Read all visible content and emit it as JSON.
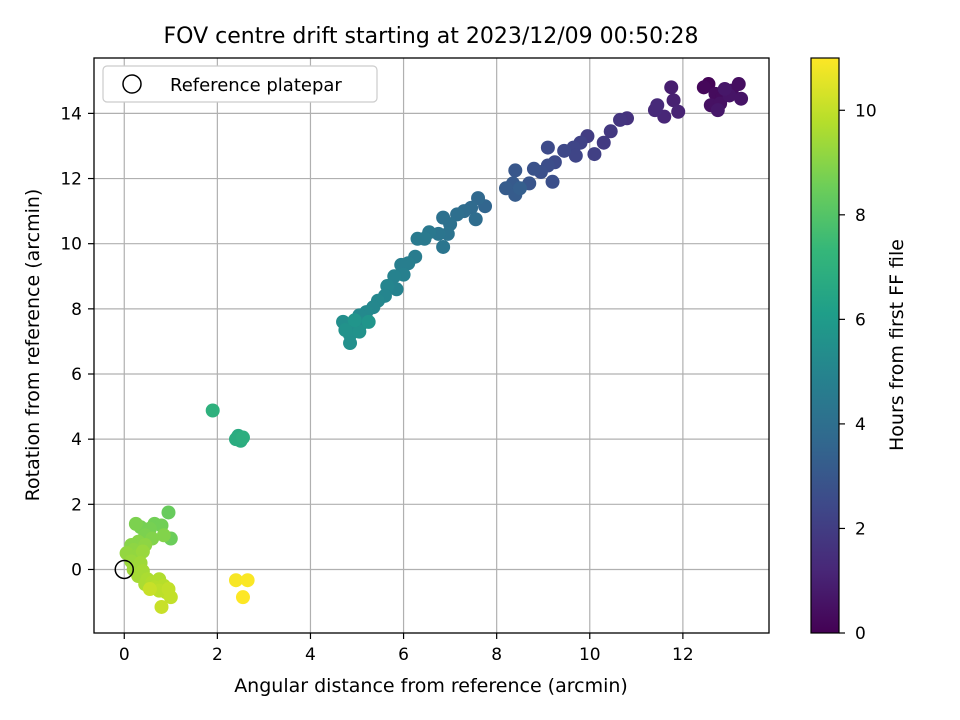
{
  "chart_data": {
    "type": "scatter",
    "title": "FOV centre drift starting at 2023/12/09 00:50:28",
    "xlabel": "Angular distance from reference (arcmin)",
    "ylabel": "Rotation from reference (arcmin)",
    "xlim": [
      -0.65,
      13.85
    ],
    "ylim": [
      -1.95,
      15.7
    ],
    "xticks": [
      0,
      2,
      4,
      6,
      8,
      10,
      12
    ],
    "yticks": [
      0,
      2,
      4,
      6,
      8,
      10,
      12,
      14
    ],
    "grid": true,
    "legend": {
      "position": "top-left",
      "entries": [
        "Reference platepar"
      ]
    },
    "colorbar": {
      "label": "Hours from first FF file",
      "range": [
        0,
        11
      ],
      "ticks": [
        0,
        2,
        4,
        6,
        8,
        10
      ],
      "colormap": "viridis",
      "colors": [
        "#440154",
        "#482878",
        "#3e4989",
        "#31688e",
        "#26828e",
        "#1f9e89",
        "#35b779",
        "#6ece58",
        "#b5de2b",
        "#fde725"
      ]
    },
    "reference_point": {
      "x": 0,
      "y": 0
    },
    "series": [
      {
        "values": [
          {
            "x": 12.55,
            "y": 14.9,
            "h": 0.1
          },
          {
            "x": 12.45,
            "y": 14.8,
            "h": 0.2
          },
          {
            "x": 12.7,
            "y": 14.6,
            "h": 0.3
          },
          {
            "x": 12.85,
            "y": 14.5,
            "h": 0.3
          },
          {
            "x": 13.05,
            "y": 14.7,
            "h": 0.4
          },
          {
            "x": 13.2,
            "y": 14.9,
            "h": 0.4
          },
          {
            "x": 12.6,
            "y": 14.25,
            "h": 0.5
          },
          {
            "x": 12.8,
            "y": 14.3,
            "h": 0.5
          },
          {
            "x": 13.0,
            "y": 14.55,
            "h": 0.6
          },
          {
            "x": 13.25,
            "y": 14.45,
            "h": 0.6
          },
          {
            "x": 12.75,
            "y": 14.1,
            "h": 0.7
          },
          {
            "x": 12.9,
            "y": 14.75,
            "h": 0.7
          },
          {
            "x": 11.75,
            "y": 14.8,
            "h": 0.9
          },
          {
            "x": 11.8,
            "y": 14.4,
            "h": 1.0
          },
          {
            "x": 11.9,
            "y": 14.05,
            "h": 1.1
          },
          {
            "x": 11.6,
            "y": 13.9,
            "h": 1.2
          },
          {
            "x": 11.4,
            "y": 14.1,
            "h": 1.3
          },
          {
            "x": 11.45,
            "y": 14.25,
            "h": 1.3
          },
          {
            "x": 10.8,
            "y": 13.85,
            "h": 1.6
          },
          {
            "x": 10.65,
            "y": 13.8,
            "h": 1.7
          },
          {
            "x": 10.45,
            "y": 13.45,
            "h": 1.8
          },
          {
            "x": 10.3,
            "y": 13.1,
            "h": 1.9
          },
          {
            "x": 9.95,
            "y": 13.3,
            "h": 2.0
          },
          {
            "x": 10.1,
            "y": 12.75,
            "h": 2.1
          },
          {
            "x": 9.8,
            "y": 13.1,
            "h": 2.2
          },
          {
            "x": 9.65,
            "y": 12.95,
            "h": 2.3
          },
          {
            "x": 9.7,
            "y": 12.7,
            "h": 2.3
          },
          {
            "x": 9.45,
            "y": 12.85,
            "h": 2.4
          },
          {
            "x": 9.25,
            "y": 12.5,
            "h": 2.5
          },
          {
            "x": 9.1,
            "y": 12.95,
            "h": 2.5
          },
          {
            "x": 9.1,
            "y": 12.4,
            "h": 2.6
          },
          {
            "x": 8.95,
            "y": 12.2,
            "h": 2.7
          },
          {
            "x": 9.2,
            "y": 11.9,
            "h": 2.7
          },
          {
            "x": 8.8,
            "y": 12.3,
            "h": 2.8
          },
          {
            "x": 8.7,
            "y": 11.85,
            "h": 2.9
          },
          {
            "x": 8.4,
            "y": 12.25,
            "h": 3.0
          },
          {
            "x": 8.35,
            "y": 11.85,
            "h": 3.1
          },
          {
            "x": 8.2,
            "y": 11.7,
            "h": 3.2
          },
          {
            "x": 8.4,
            "y": 11.5,
            "h": 3.2
          },
          {
            "x": 8.5,
            "y": 11.7,
            "h": 3.3
          },
          {
            "x": 7.75,
            "y": 11.15,
            "h": 3.6
          },
          {
            "x": 7.6,
            "y": 11.4,
            "h": 3.7
          },
          {
            "x": 7.45,
            "y": 11.1,
            "h": 3.8
          },
          {
            "x": 7.3,
            "y": 11.0,
            "h": 3.9
          },
          {
            "x": 7.55,
            "y": 10.75,
            "h": 3.9
          },
          {
            "x": 7.15,
            "y": 10.9,
            "h": 4.0
          },
          {
            "x": 7.0,
            "y": 10.6,
            "h": 4.1
          },
          {
            "x": 6.85,
            "y": 10.8,
            "h": 4.1
          },
          {
            "x": 6.95,
            "y": 10.3,
            "h": 4.2
          },
          {
            "x": 6.75,
            "y": 10.3,
            "h": 4.3
          },
          {
            "x": 6.85,
            "y": 9.9,
            "h": 4.3
          },
          {
            "x": 6.55,
            "y": 10.35,
            "h": 4.4
          },
          {
            "x": 6.45,
            "y": 10.15,
            "h": 4.5
          },
          {
            "x": 6.3,
            "y": 10.15,
            "h": 4.5
          },
          {
            "x": 6.25,
            "y": 9.6,
            "h": 4.6
          },
          {
            "x": 6.1,
            "y": 9.4,
            "h": 4.7
          },
          {
            "x": 5.95,
            "y": 9.35,
            "h": 4.7
          },
          {
            "x": 6.0,
            "y": 9.05,
            "h": 4.8
          },
          {
            "x": 5.8,
            "y": 9.0,
            "h": 4.9
          },
          {
            "x": 5.85,
            "y": 8.6,
            "h": 4.9
          },
          {
            "x": 5.65,
            "y": 8.7,
            "h": 5.0
          },
          {
            "x": 5.6,
            "y": 8.4,
            "h": 5.0
          },
          {
            "x": 5.45,
            "y": 8.25,
            "h": 5.1
          },
          {
            "x": 5.35,
            "y": 8.05,
            "h": 5.1
          },
          {
            "x": 5.2,
            "y": 7.9,
            "h": 5.2
          },
          {
            "x": 5.05,
            "y": 7.8,
            "h": 5.2
          },
          {
            "x": 5.1,
            "y": 7.55,
            "h": 5.3
          },
          {
            "x": 4.95,
            "y": 7.4,
            "h": 5.3
          },
          {
            "x": 4.8,
            "y": 7.5,
            "h": 5.4
          },
          {
            "x": 4.7,
            "y": 7.6,
            "h": 5.4
          },
          {
            "x": 4.85,
            "y": 7.2,
            "h": 5.5
          },
          {
            "x": 4.85,
            "y": 6.95,
            "h": 5.5
          },
          {
            "x": 5.05,
            "y": 7.3,
            "h": 5.6
          },
          {
            "x": 4.75,
            "y": 7.35,
            "h": 5.6
          },
          {
            "x": 4.95,
            "y": 7.65,
            "h": 5.7
          },
          {
            "x": 5.25,
            "y": 7.6,
            "h": 5.7
          },
          {
            "x": 2.45,
            "y": 4.1,
            "h": 6.7
          },
          {
            "x": 2.5,
            "y": 3.95,
            "h": 6.8
          },
          {
            "x": 2.4,
            "y": 4.0,
            "h": 6.8
          },
          {
            "x": 2.55,
            "y": 4.05,
            "h": 6.9
          },
          {
            "x": 1.9,
            "y": 4.88,
            "h": 7.0
          },
          {
            "x": 0.95,
            "y": 1.75,
            "h": 8.4
          },
          {
            "x": 1.0,
            "y": 0.95,
            "h": 8.5
          },
          {
            "x": 0.65,
            "y": 1.4,
            "h": 8.6
          },
          {
            "x": 0.8,
            "y": 1.35,
            "h": 8.6
          },
          {
            "x": 0.55,
            "y": 1.25,
            "h": 8.7
          },
          {
            "x": 0.35,
            "y": 1.3,
            "h": 8.7
          },
          {
            "x": 0.25,
            "y": 1.4,
            "h": 8.8
          },
          {
            "x": 0.45,
            "y": 1.05,
            "h": 8.8
          },
          {
            "x": 0.6,
            "y": 0.95,
            "h": 8.9
          },
          {
            "x": 0.85,
            "y": 1.05,
            "h": 8.9
          },
          {
            "x": 0.3,
            "y": 0.85,
            "h": 9.0
          },
          {
            "x": 0.15,
            "y": 0.75,
            "h": 9.0
          },
          {
            "x": 0.2,
            "y": 0.6,
            "h": 9.1
          },
          {
            "x": 0.45,
            "y": 0.75,
            "h": 9.1
          },
          {
            "x": 0.05,
            "y": 0.5,
            "h": 9.2
          },
          {
            "x": 0.25,
            "y": 0.4,
            "h": 9.2
          },
          {
            "x": 0.4,
            "y": 0.55,
            "h": 9.3
          },
          {
            "x": 0.15,
            "y": 0.25,
            "h": 9.3
          },
          {
            "x": 0.35,
            "y": 0.2,
            "h": 9.4
          },
          {
            "x": 0.2,
            "y": 0.0,
            "h": 9.4
          },
          {
            "x": 0.4,
            "y": -0.05,
            "h": 9.5
          },
          {
            "x": 0.3,
            "y": -0.2,
            "h": 9.5
          },
          {
            "x": 0.5,
            "y": -0.3,
            "h": 9.6
          },
          {
            "x": 0.45,
            "y": -0.45,
            "h": 9.6
          },
          {
            "x": 0.6,
            "y": -0.4,
            "h": 9.7
          },
          {
            "x": 0.75,
            "y": -0.3,
            "h": 9.7
          },
          {
            "x": 0.65,
            "y": -0.55,
            "h": 9.8
          },
          {
            "x": 0.85,
            "y": -0.5,
            "h": 9.8
          },
          {
            "x": 0.75,
            "y": -0.65,
            "h": 9.9
          },
          {
            "x": 0.9,
            "y": -0.7,
            "h": 9.9
          },
          {
            "x": 1.0,
            "y": -0.85,
            "h": 10.0
          },
          {
            "x": 0.95,
            "y": -0.6,
            "h": 10.0
          },
          {
            "x": 0.8,
            "y": -1.15,
            "h": 10.1
          },
          {
            "x": 0.55,
            "y": -0.6,
            "h": 10.1
          },
          {
            "x": 2.4,
            "y": -0.33,
            "h": 10.9
          },
          {
            "x": 2.65,
            "y": -0.33,
            "h": 10.95
          },
          {
            "x": 2.55,
            "y": -0.85,
            "h": 11.0
          }
        ]
      }
    ]
  }
}
